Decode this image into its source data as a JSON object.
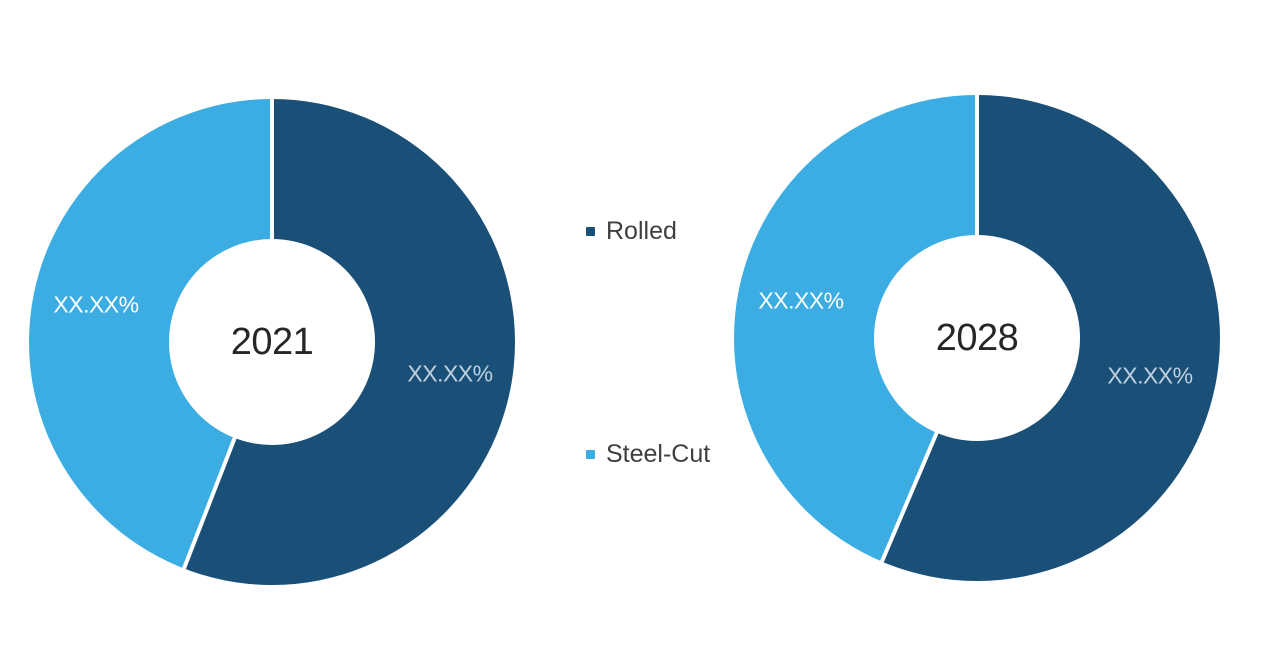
{
  "figure": {
    "background": "#FFFFFF"
  },
  "legend": {
    "items": [
      {
        "label": "Rolled",
        "color": "#1A5078",
        "swatch": "square"
      },
      {
        "label": "Steel-Cut",
        "color": "#3BADE2",
        "swatch": "square"
      }
    ],
    "text_color": "#3F3F3F"
  },
  "chart_data": [
    {
      "type": "pie",
      "subtype": "donut",
      "center_label": "2021",
      "categories": [
        "Rolled",
        "Steel-Cut"
      ],
      "series": [
        {
          "name": "Rolled",
          "display_value": "XX.XX%",
          "estimated_pct": 55.9,
          "color": "#1A5078",
          "label_color": "#BFD0E0"
        },
        {
          "name": "Steel-Cut",
          "display_value": "XX.XX%",
          "estimated_pct": 44.1,
          "color": "#3BADE2",
          "label_color": "#FFFFFF"
        }
      ],
      "start_angle_deg": 0,
      "direction": "clockwise",
      "slice_divider_color": "#FFFFFF",
      "hole_ratio": 0.42,
      "legend_position": "center-between-charts"
    },
    {
      "type": "pie",
      "subtype": "donut",
      "center_label": "2028",
      "categories": [
        "Rolled",
        "Steel-Cut"
      ],
      "series": [
        {
          "name": "Rolled",
          "display_value": "XX.XX%",
          "estimated_pct": 56.4,
          "color": "#1A5078",
          "label_color": "#BFD0E0"
        },
        {
          "name": "Steel-Cut",
          "display_value": "XX.XX%",
          "estimated_pct": 43.6,
          "color": "#3BADE2",
          "label_color": "#FFFFFF"
        }
      ],
      "start_angle_deg": 0,
      "direction": "clockwise",
      "slice_divider_color": "#FFFFFF",
      "hole_ratio": 0.42,
      "legend_position": "center-between-charts"
    }
  ]
}
